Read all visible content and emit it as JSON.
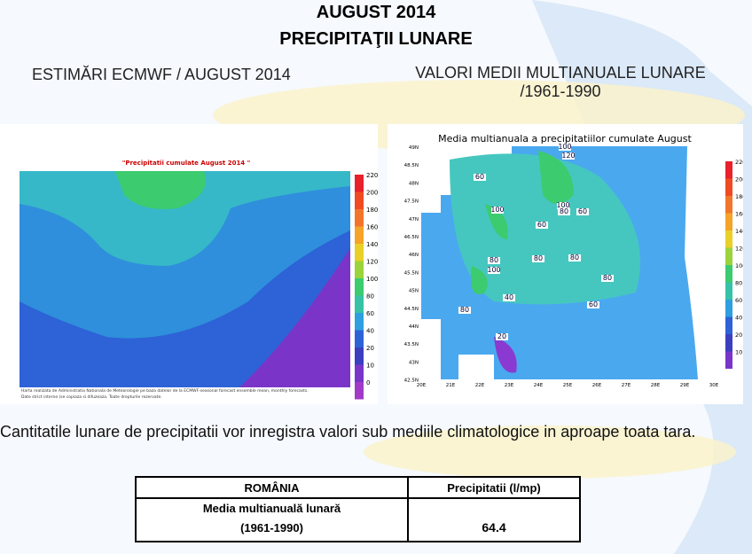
{
  "header": {
    "title": "AUGUST 2014",
    "subtitle": "PRECIPITAŢII LUNARE"
  },
  "left_panel": {
    "heading": "ESTIMĂRI ECMWF / AUGUST 2014",
    "map_title": "\"Precipitatii cumulate August 2014 \"",
    "colorbar": [
      220,
      200,
      180,
      160,
      140,
      120,
      100,
      80,
      60,
      40,
      20,
      10,
      0
    ],
    "footnote": [
      "Harta realizata de Administratia Nationala de Meteorologie pe baza datelor de la ECMWF-seasonal forecast ensemble mean, monthly forecasts.",
      "Date strict interne (se copiaza si difuzeaza. Toate drepturile rezervate."
    ]
  },
  "right_panel": {
    "heading_lines": [
      "VALORI MEDII MULTIANUALE LUNARE",
      "/1961-1990"
    ],
    "map_title": "Media multianuala a precipitatiilor cumulate August",
    "colorbar": [
      220,
      200,
      180,
      160,
      140,
      120,
      100,
      80,
      60,
      40,
      20,
      10
    ],
    "x_labels": [
      "20E",
      "21E",
      "22E",
      "23E",
      "24E",
      "25E",
      "26E",
      "27E",
      "28E",
      "29E",
      "30E"
    ],
    "y_labels": [
      "49N",
      "48.5N",
      "48N",
      "47.5N",
      "47N",
      "46.5N",
      "46N",
      "45.5N",
      "45N",
      "44.5N",
      "44N",
      "43.5N",
      "43N",
      "42.5N"
    ],
    "contour_labels": [
      "100",
      "120",
      "60",
      "100",
      "100",
      "80",
      "60",
      "60",
      "80",
      "100",
      "80",
      "80",
      "80",
      "40",
      "60",
      "80",
      "20"
    ]
  },
  "paragraph": "Cantitatile lunare de precipitatii vor inregistra valori sub mediile climatologice in aproape toata tara.",
  "table": {
    "header": [
      "ROMÂNIA",
      "Precipitatii (l/mp)"
    ],
    "row_label": [
      "Media multianuală lunară",
      "(1961-1990)"
    ],
    "value": "64.4"
  }
}
